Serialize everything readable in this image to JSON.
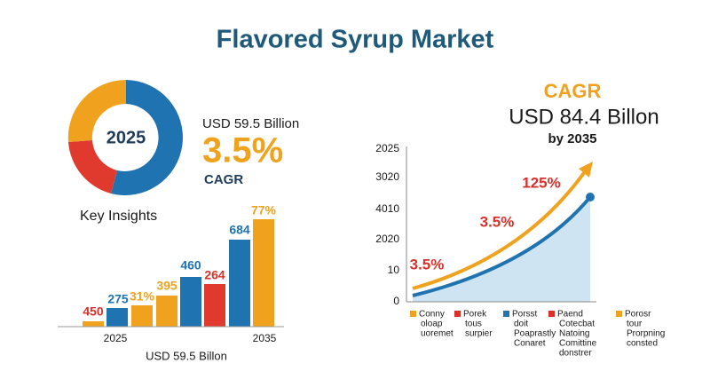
{
  "title": "Flavored Syrup Market",
  "left": {
    "donut_label": "2025",
    "value": "USD 59.5 Billion",
    "rate": "3.5%",
    "rate_label": "CAGR",
    "insights_title": "Key Insights",
    "bar_labels": [
      "450",
      "275",
      "31%",
      "395",
      "460",
      "264",
      "684",
      "77%"
    ],
    "x_labels": [
      "2025",
      "2035"
    ],
    "caption": "USD 59.5 Billon"
  },
  "right": {
    "heading": "CAGR",
    "value": "USD 84.4 Billon",
    "year": "by 2035",
    "y_labels": [
      "2025",
      "3020",
      "4010",
      "2020",
      "10",
      "0"
    ],
    "annotations": [
      "125%",
      "3.5%",
      "3.5%"
    ],
    "legend": [
      {
        "lines": [
          "Conny",
          "oloap",
          "uoremet"
        ]
      },
      {
        "lines": [
          "Porek",
          "tous",
          "surpier"
        ]
      },
      {
        "lines": [
          "Porsst",
          "doit",
          "Poaprastly",
          "Conaret"
        ]
      },
      {
        "lines": [
          "Paend",
          "Cotecbat",
          "Natoing",
          "Comittine",
          "donstrer"
        ]
      },
      {
        "lines": [
          "Porosr",
          "tour",
          "Prorpning",
          "consted"
        ]
      }
    ]
  }
}
